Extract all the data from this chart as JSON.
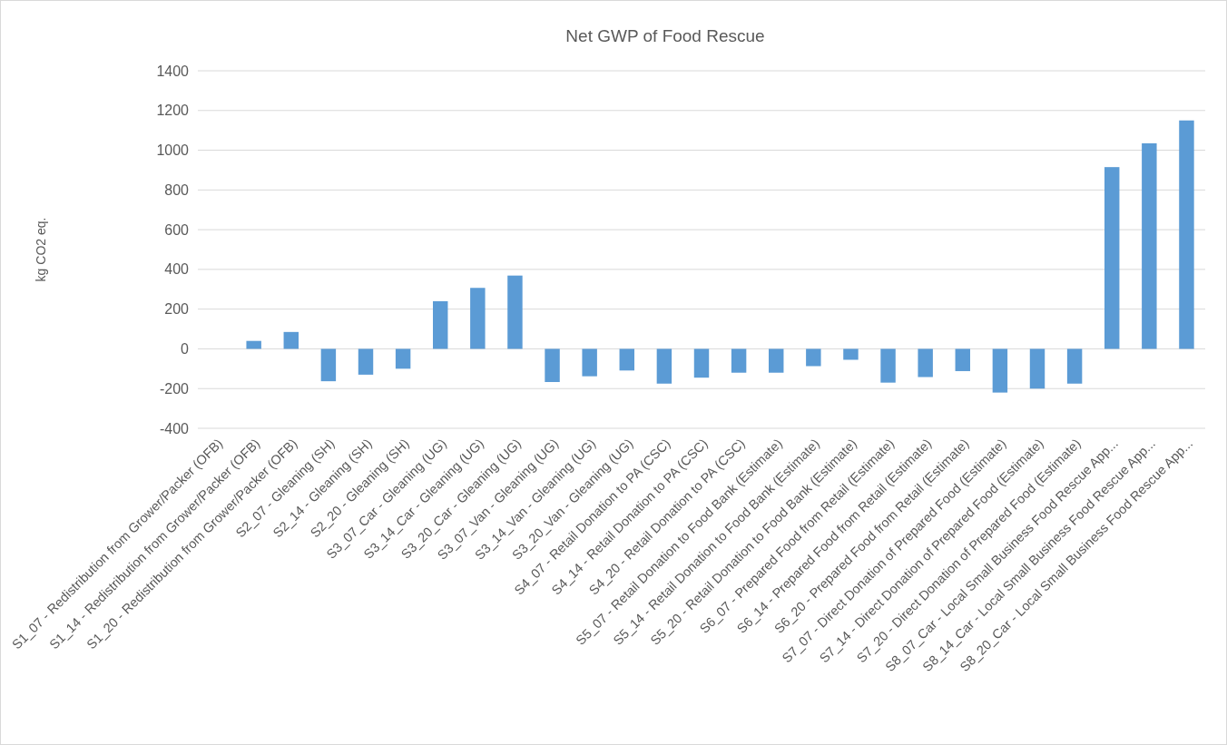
{
  "chart_data": {
    "type": "bar",
    "title": "Net GWP of Food Rescue",
    "ylabel": "kg CO2 eq.",
    "categories": [
      "S1_07 - Redistribution from Grower/Packer (OFB)",
      "S1_14 - Redistribution from Grower/Packer (OFB)",
      "S1_20 - Redistribution from Grower/Packer (OFB)",
      "S2_07 - Gleaning (SH)",
      "S2_14 - Gleaning (SH)",
      "S2_20 - Gleaning (SH)",
      "S3_07_Car - Gleaning (UG)",
      "S3_14_Car - Gleaning (UG)",
      "S3_20_Car - Gleaning (UG)",
      "S3_07_Van - Gleaning (UG)",
      "S3_14_Van - Gleaning (UG)",
      "S3_20_Van - Gleaning (UG)",
      "S4_07 - Retail Donation to PA (CSC)",
      "S4_14 - Retail Donation to PA (CSC)",
      "S4_20 - Retail Donation to PA (CSC)",
      "S5_07 - Retail Donation to Food Bank (Estimate)",
      "S5_14 - Retail Donation to Food Bank (Estimate)",
      "S5_20 - Retail Donation to Food Bank (Estimate)",
      "S6_07 - Prepared Food from Retail (Estimate)",
      "S6_14 - Prepared Food from Retail (Estimate)",
      "S6_20 - Prepared Food from Retail (Estimate)",
      "S7_07 - Direct Donation of Prepared Food (Estimate)",
      "S7_14 - Direct Donation of Prepared Food (Estimate)",
      "S7_20 - Direct Donation of Prepared Food (Estimate)",
      "S8_07_Car - Local Small Business Food Rescue App...",
      "S8_14_Car - Local Small Business Food Rescue App...",
      "S8_20_Car - Local Small Business Food Rescue App..."
    ],
    "values": [
      0,
      40,
      85,
      -163,
      -130,
      -100,
      240,
      307,
      369,
      -167,
      -138,
      -109,
      -175,
      -145,
      -120,
      -120,
      -87,
      -55,
      -170,
      -142,
      -112,
      -220,
      -200,
      -175,
      915,
      1035,
      1150
    ],
    "color": "#5b9bd5",
    "ylim": [
      -400,
      1400
    ],
    "yticks": [
      -400,
      -200,
      0,
      200,
      400,
      600,
      800,
      1000,
      1200,
      1400
    ],
    "grid": "y"
  }
}
